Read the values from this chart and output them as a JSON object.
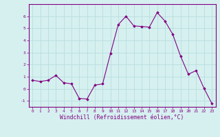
{
  "x": [
    0,
    1,
    2,
    3,
    4,
    5,
    6,
    7,
    8,
    9,
    10,
    11,
    12,
    13,
    14,
    15,
    16,
    17,
    18,
    19,
    20,
    21,
    22,
    23
  ],
  "y": [
    0.7,
    0.6,
    0.7,
    1.1,
    0.5,
    0.4,
    -0.8,
    -0.85,
    0.3,
    0.4,
    2.9,
    5.3,
    6.0,
    5.2,
    5.15,
    5.1,
    6.3,
    5.6,
    4.5,
    2.7,
    1.2,
    1.5,
    0.05,
    -1.2
  ],
  "line_color": "#800080",
  "marker": "D",
  "marker_size": 1.8,
  "bg_color": "#d6f0f0",
  "grid_color": "#b8dede",
  "xlabel": "Windchill (Refroidissement éolien,°C)",
  "xlabel_color": "#800080",
  "tick_color": "#800080",
  "ylim": [
    -1.5,
    7.0
  ],
  "xlim": [
    -0.5,
    23.5
  ],
  "yticks": [
    -1,
    0,
    1,
    2,
    3,
    4,
    5,
    6
  ],
  "xticks": [
    0,
    1,
    2,
    3,
    4,
    5,
    6,
    7,
    8,
    9,
    10,
    11,
    12,
    13,
    14,
    15,
    16,
    17,
    18,
    19,
    20,
    21,
    22,
    23
  ],
  "tick_fontsize": 4.5,
  "xlabel_fontsize": 5.8,
  "spine_color": "#800080",
  "linewidth": 0.8
}
